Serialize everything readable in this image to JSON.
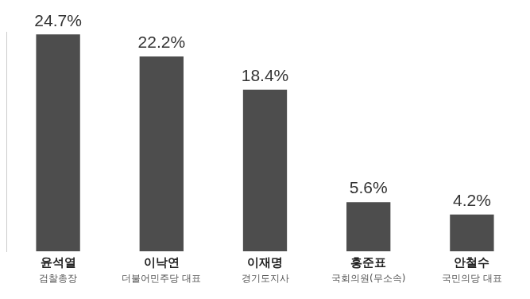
{
  "chart_data": {
    "type": "bar",
    "categories": [
      "윤석열",
      "이낙연",
      "이재명",
      "홍준표",
      "안철수"
    ],
    "category_subtitles": [
      "검찰총장",
      "더불어민주당 대표",
      "경기도지사",
      "국회의원(무소속)",
      "국민의당 대표"
    ],
    "values": [
      24.7,
      22.2,
      18.4,
      5.6,
      4.2
    ],
    "value_labels": [
      "24.7%",
      "22.2%",
      "18.4%",
      "5.6%",
      "4.2%"
    ],
    "color": "#4d4d4d",
    "ylim": [
      0,
      25
    ],
    "grid": false,
    "data_labels": true,
    "tick_labels": "x"
  }
}
